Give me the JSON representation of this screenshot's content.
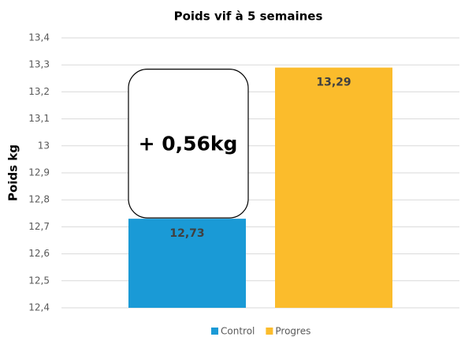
{
  "chart_data": {
    "type": "bar",
    "title": "Poids vif à 5 semaines",
    "ylabel": "Poids kg",
    "categories": [
      null
    ],
    "series": [
      {
        "name": "Control",
        "color": "#1a9ad6",
        "values": [
          12.73
        ],
        "value_labels": [
          "12,73"
        ]
      },
      {
        "name": "Progres",
        "color": "#fbbc2c",
        "values": [
          13.29
        ],
        "value_labels": [
          "13,29"
        ]
      }
    ],
    "annotation": "+ 0,56kg",
    "ylim": [
      12.4,
      13.4
    ],
    "yticks": [
      {
        "value": 12.4,
        "label": "12,4"
      },
      {
        "value": 12.5,
        "label": "12,5"
      },
      {
        "value": 12.6,
        "label": "12,6"
      },
      {
        "value": 12.7,
        "label": "12,7"
      },
      {
        "value": 12.8,
        "label": "12,8"
      },
      {
        "value": 12.9,
        "label": "12,9"
      },
      13,
      {
        "value": 13.1,
        "label": "13,1"
      },
      {
        "value": 13.2,
        "label": "13,2"
      },
      {
        "value": 13.3,
        "label": "13,3"
      },
      {
        "value": 13.4,
        "label": "13,4"
      }
    ],
    "grid": true,
    "legend": "bottom"
  }
}
